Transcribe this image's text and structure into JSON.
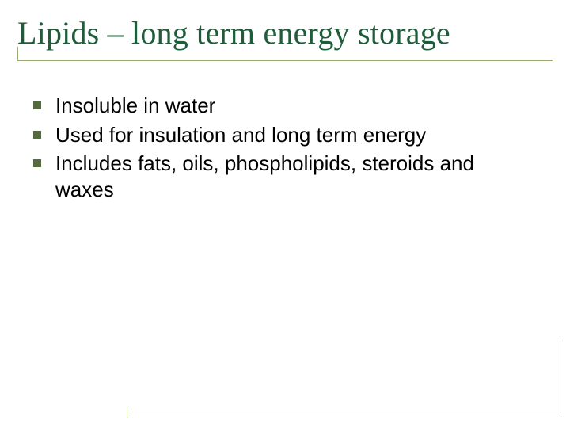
{
  "slide": {
    "title": "Lipids – long term energy storage",
    "title_color": "#1f5d3a",
    "title_fontsize": 40,
    "underline_color": "#9aab76",
    "bullet_marker_color": "#546b3e",
    "body_text_color": "#000000",
    "body_fontsize": 26,
    "background_color": "#ffffff",
    "bullets": [
      "Insoluble in water",
      "Used for insulation and long term energy",
      "Includes fats, oils, phospholipids, steroids and waxes"
    ],
    "frame_color": "#9aab76"
  }
}
